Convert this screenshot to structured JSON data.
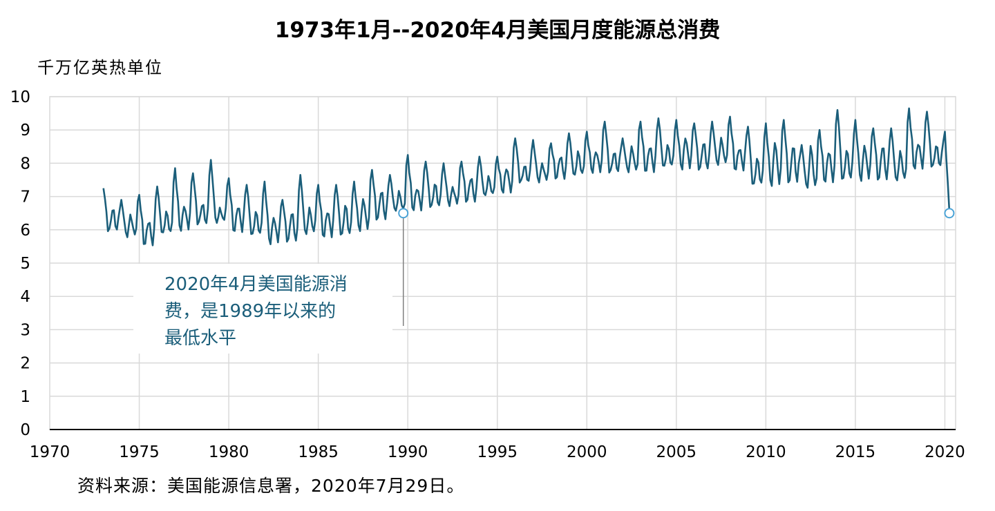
{
  "chart_data": {
    "type": "line",
    "title": "1973年1月--2020年4月美国月度能源总消费",
    "ylabel": "千万亿英热单位",
    "xlim": [
      1970,
      2020.6
    ],
    "ylim": [
      0,
      10
    ],
    "x_ticks": [
      "1970",
      "1975",
      "1980",
      "1985",
      "1990",
      "1995",
      "2000",
      "2005",
      "2010",
      "2015",
      "2020"
    ],
    "y_ticks": [
      "0",
      "1",
      "2",
      "3",
      "4",
      "5",
      "6",
      "7",
      "8",
      "9",
      "10"
    ],
    "grid": true,
    "series_color": "#1b5e7a",
    "marker_color": "#4aa3d6",
    "annual_base": {
      "years": [
        1973,
        1974,
        1975,
        1976,
        1977,
        1978,
        1979,
        1980,
        1981,
        1982,
        1983,
        1984,
        1985,
        1986,
        1987,
        1988,
        1989,
        1990,
        1991,
        1992,
        1993,
        1994,
        1995,
        1996,
        1997,
        1998,
        1999,
        2000,
        2001,
        2002,
        2003,
        2004,
        2005,
        2006,
        2007,
        2008,
        2009,
        2010,
        2011,
        2012,
        2013,
        2014,
        2015,
        2016,
        2017,
        2018,
        2019,
        2020
      ],
      "min": [
        5.95,
        5.8,
        5.55,
        5.85,
        6.0,
        6.15,
        6.2,
        5.95,
        5.8,
        5.6,
        5.65,
        5.85,
        5.8,
        5.8,
        6.0,
        6.3,
        6.55,
        6.6,
        6.65,
        6.75,
        6.85,
        7.0,
        7.15,
        7.4,
        7.45,
        7.55,
        7.6,
        7.75,
        7.7,
        7.75,
        7.75,
        7.85,
        7.85,
        7.8,
        7.95,
        7.8,
        7.3,
        7.35,
        7.4,
        7.25,
        7.45,
        7.45,
        7.5,
        7.5,
        7.45,
        7.85,
        7.85,
        6.5
      ],
      "winter_peak": [
        7.25,
        6.9,
        7.05,
        7.3,
        7.85,
        7.7,
        8.1,
        7.55,
        7.35,
        7.45,
        6.9,
        7.65,
        7.35,
        7.35,
        7.45,
        7.8,
        7.65,
        8.25,
        8.05,
        8.0,
        8.05,
        8.2,
        8.2,
        8.75,
        8.7,
        8.6,
        8.9,
        8.95,
        9.25,
        8.75,
        9.25,
        9.35,
        9.3,
        9.2,
        9.25,
        9.4,
        9.1,
        9.2,
        9.3,
        8.55,
        9.0,
        9.6,
        9.3,
        9.05,
        9.05,
        9.65,
        9.55,
        8.95
      ],
      "summer_peak": [
        6.6,
        6.4,
        6.25,
        6.5,
        6.7,
        6.75,
        6.6,
        6.7,
        6.5,
        6.35,
        6.5,
        6.6,
        6.55,
        6.7,
        6.9,
        7.15,
        7.1,
        7.25,
        7.35,
        7.25,
        7.55,
        7.55,
        7.85,
        7.9,
        7.95,
        8.2,
        8.3,
        8.35,
        8.3,
        8.45,
        8.5,
        8.5,
        8.75,
        8.6,
        8.7,
        8.45,
        8.1,
        8.6,
        8.5,
        8.45,
        8.35,
        8.35,
        8.5,
        8.5,
        8.3,
        8.6,
        8.5,
        0
      ]
    },
    "highlight_points": [
      {
        "x": "1989年4月",
        "y": 6.5
      },
      {
        "x": "2020年4月",
        "y": 6.5
      }
    ],
    "annotation": [
      "2020年4月美国能源消",
      "费，是1989年以来的",
      "最低水平"
    ]
  },
  "source": "资料来源：美国能源信息署，2020年7月29日。"
}
